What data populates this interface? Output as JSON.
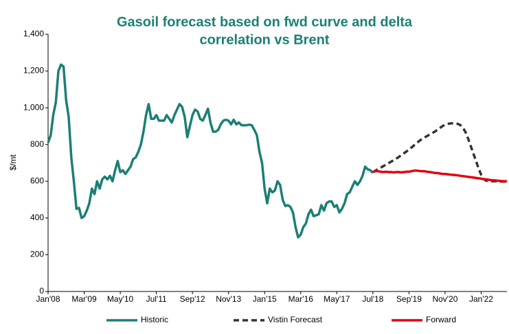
{
  "chart_data": {
    "type": "line",
    "title": [
      "Gasoil forecast based on fwd curve and delta",
      "correlation vs Brent"
    ],
    "y_label": "$/mt",
    "categories": [
      "Jan'08",
      null,
      null,
      null,
      null,
      null,
      null,
      null,
      null,
      null,
      null,
      null,
      null,
      null,
      "Mar'09",
      null,
      null,
      null,
      null,
      null,
      null,
      null,
      null,
      null,
      null,
      null,
      null,
      null,
      "May'10",
      null,
      null,
      null,
      null,
      null,
      null,
      null,
      null,
      null,
      null,
      null,
      null,
      null,
      "Jul'11",
      null,
      null,
      null,
      null,
      null,
      null,
      null,
      null,
      null,
      null,
      null,
      null,
      null,
      "Sep'12",
      null,
      null,
      null,
      null,
      null,
      null,
      null,
      null,
      null,
      null,
      null,
      null,
      null,
      "Nov'13",
      null,
      null,
      null,
      null,
      null,
      null,
      null,
      null,
      null,
      null,
      null,
      null,
      null,
      "Jan'15",
      null,
      null,
      null,
      null,
      null,
      null,
      null,
      null,
      null,
      null,
      null,
      null,
      null,
      "Mar'16",
      null,
      null,
      null,
      null,
      null,
      null,
      null,
      null,
      null,
      null,
      null,
      null,
      null,
      "May'17",
      null,
      null,
      null,
      null,
      null,
      null,
      null,
      null,
      null,
      null,
      null,
      null,
      null,
      "Jul'18",
      null,
      null,
      null,
      null,
      null,
      null,
      null,
      null,
      null,
      null,
      null,
      null,
      null,
      "Sep'19",
      null,
      null,
      null,
      null,
      null,
      null,
      null,
      null,
      null,
      null,
      null,
      null,
      null,
      "Nov'20",
      null,
      null,
      null,
      null,
      null,
      null,
      null,
      null,
      null,
      null,
      null,
      null,
      null,
      "Jan'22",
      null,
      null,
      null,
      null,
      null,
      null,
      null,
      null,
      null,
      null
    ],
    "ylim": [
      0,
      1400
    ],
    "yticks": [
      0,
      200,
      400,
      600,
      800,
      {
        "value": 1000,
        "label": "1,000"
      },
      {
        "value": 1200,
        "label": "1,200"
      },
      {
        "value": 1400,
        "label": "1,400"
      }
    ],
    "series": [
      {
        "name": "Historic",
        "color": "#1b7f74",
        "dashed": false,
        "values": [
          810,
          850,
          960,
          1030,
          1200,
          1235,
          1225,
          1040,
          950,
          730,
          600,
          450,
          455,
          400,
          410,
          440,
          480,
          560,
          530,
          600,
          560,
          610,
          625,
          610,
          630,
          600,
          660,
          710,
          650,
          660,
          640,
          660,
          680,
          720,
          730,
          760,
          800,
          870,
          960,
          1020,
          940,
          940,
          960,
          930,
          930,
          930,
          960,
          940,
          920,
          960,
          990,
          1020,
          1005,
          950,
          840,
          900,
          960,
          990,
          980,
          940,
          930,
          960,
          995,
          920,
          870,
          870,
          880,
          910,
          930,
          935,
          930,
          910,
          935,
          910,
          920,
          905,
          905,
          905,
          908,
          905,
          880,
          850,
          760,
          700,
          560,
          480,
          560,
          540,
          550,
          600,
          580,
          500,
          465,
          470,
          460,
          430,
          350,
          295,
          310,
          350,
          370,
          420,
          445,
          410,
          415,
          420,
          470,
          440,
          480,
          490,
          490,
          460,
          470,
          430,
          450,
          480,
          530,
          540,
          570,
          600,
          580,
          600,
          630,
          680,
          665,
          660,
          645,
          null,
          null,
          null,
          null,
          null,
          null,
          null,
          null,
          null,
          null,
          null,
          null,
          null,
          null,
          null,
          null,
          null,
          null,
          null,
          null,
          null,
          null,
          null,
          null,
          null,
          null,
          null,
          null,
          null,
          null,
          null,
          null,
          null,
          null,
          null,
          null,
          null,
          null,
          null,
          null,
          null,
          null,
          null,
          null,
          null,
          null,
          null,
          null,
          null,
          null,
          null,
          null
        ]
      },
      {
        "name": "Vistin Forecast",
        "color": "#333333",
        "dashed": true,
        "values": [
          null,
          null,
          null,
          null,
          null,
          null,
          null,
          null,
          null,
          null,
          null,
          null,
          null,
          null,
          null,
          null,
          null,
          null,
          null,
          null,
          null,
          null,
          null,
          null,
          null,
          null,
          null,
          null,
          null,
          null,
          null,
          null,
          null,
          null,
          null,
          null,
          null,
          null,
          null,
          null,
          null,
          null,
          null,
          null,
          null,
          null,
          null,
          null,
          null,
          null,
          null,
          null,
          null,
          null,
          null,
          null,
          null,
          null,
          null,
          null,
          null,
          null,
          null,
          null,
          null,
          null,
          null,
          null,
          null,
          null,
          null,
          null,
          null,
          null,
          null,
          null,
          null,
          null,
          null,
          null,
          null,
          null,
          null,
          null,
          null,
          null,
          null,
          null,
          null,
          null,
          null,
          null,
          null,
          null,
          null,
          null,
          null,
          null,
          null,
          null,
          null,
          null,
          null,
          null,
          null,
          null,
          null,
          null,
          null,
          null,
          null,
          null,
          null,
          null,
          null,
          null,
          null,
          null,
          null,
          null,
          null,
          null,
          null,
          null,
          null,
          null,
          650,
          658,
          666,
          674,
          682,
          690,
          698,
          706,
          714,
          722,
          732,
          742,
          752,
          762,
          772,
          784,
          796,
          808,
          820,
          830,
          838,
          846,
          854,
          862,
          870,
          880,
          890,
          900,
          908,
          912,
          915,
          915,
          915,
          912,
          905,
          890,
          865,
          830,
          790,
          750,
          710,
          670,
          635,
          612,
          603,
          600,
          600,
          600,
          600,
          600,
          598,
          598,
          598
        ]
      },
      {
        "name": "Forward",
        "color": "#e3000f",
        "dashed": false,
        "values": [
          null,
          null,
          null,
          null,
          null,
          null,
          null,
          null,
          null,
          null,
          null,
          null,
          null,
          null,
          null,
          null,
          null,
          null,
          null,
          null,
          null,
          null,
          null,
          null,
          null,
          null,
          null,
          null,
          null,
          null,
          null,
          null,
          null,
          null,
          null,
          null,
          null,
          null,
          null,
          null,
          null,
          null,
          null,
          null,
          null,
          null,
          null,
          null,
          null,
          null,
          null,
          null,
          null,
          null,
          null,
          null,
          null,
          null,
          null,
          null,
          null,
          null,
          null,
          null,
          null,
          null,
          null,
          null,
          null,
          null,
          null,
          null,
          null,
          null,
          null,
          null,
          null,
          null,
          null,
          null,
          null,
          null,
          null,
          null,
          null,
          null,
          null,
          null,
          null,
          null,
          null,
          null,
          null,
          null,
          null,
          null,
          null,
          null,
          null,
          null,
          null,
          null,
          null,
          null,
          null,
          null,
          null,
          null,
          null,
          null,
          null,
          null,
          null,
          null,
          null,
          null,
          null,
          null,
          null,
          null,
          null,
          null,
          null,
          null,
          null,
          null,
          650,
          655,
          655,
          652,
          650,
          652,
          650,
          650,
          648,
          650,
          650,
          648,
          650,
          652,
          652,
          655,
          658,
          658,
          656,
          655,
          655,
          652,
          650,
          648,
          645,
          645,
          642,
          640,
          640,
          638,
          636,
          635,
          634,
          632,
          630,
          628,
          626,
          624,
          622,
          620,
          618,
          616,
          614,
          612,
          610,
          608,
          606,
          605,
          604,
          602,
          601,
          600,
          600
        ]
      }
    ],
    "legend": "bottom"
  }
}
